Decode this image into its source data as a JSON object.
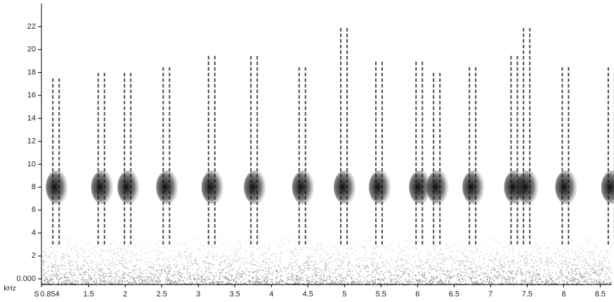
{
  "chart_data": {
    "type": "spectrogram",
    "xlabel": "S",
    "ylabel": "kHz",
    "xlim": [
      0.854,
      8.65
    ],
    "xticks": [
      0.854,
      1.5,
      2,
      2.5,
      3,
      3.5,
      4,
      4.5,
      5,
      5.5,
      6,
      6.5,
      7,
      7.5,
      8,
      8.5
    ],
    "ylim": [
      0,
      23.5
    ],
    "yticks": [
      {
        "value": 0,
        "label": "0.000"
      },
      2,
      4,
      6,
      8,
      10,
      12,
      14,
      16,
      18,
      20,
      22
    ],
    "x": [
      1.01,
      1.63,
      1.99,
      2.52,
      3.14,
      3.72,
      4.38,
      4.95,
      5.43,
      5.98,
      6.22,
      6.71,
      7.28,
      7.45,
      7.98,
      8.61
    ],
    "values": [
      17.5,
      18,
      18,
      18.5,
      19.5,
      19.5,
      18.5,
      22,
      19,
      19,
      18,
      18.5,
      19.5,
      22,
      18.5,
      18.5
    ],
    "color": "#111111"
  }
}
